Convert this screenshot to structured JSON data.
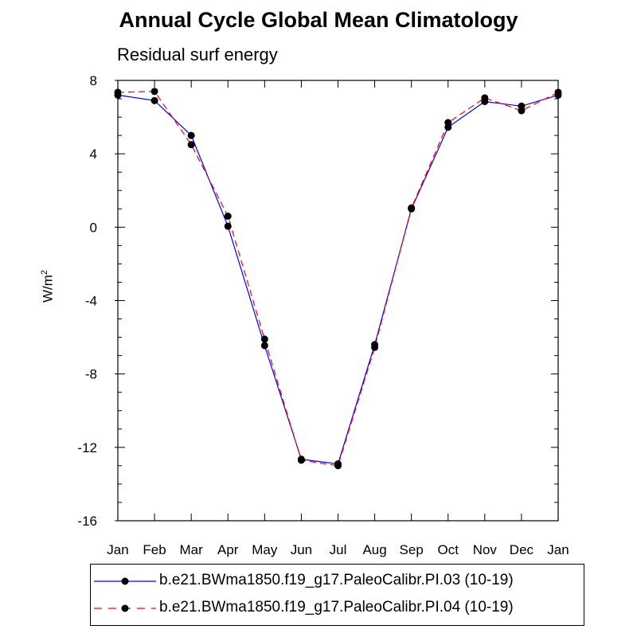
{
  "title": "Annual Cycle Global Mean Climatology",
  "subtitle": "Residual surf energy",
  "chart_data": {
    "type": "line",
    "title": "Annual Cycle Global Mean Climatology",
    "subtitle": "Residual surf energy",
    "xlabel": "",
    "ylabel": "W/m",
    "ylabel_superscript": "2",
    "categories": [
      "Jan",
      "Feb",
      "Mar",
      "Apr",
      "May",
      "Jun",
      "Jul",
      "Aug",
      "Sep",
      "Oct",
      "Nov",
      "Dec",
      "Jan"
    ],
    "ylim": [
      -16,
      8
    ],
    "yticks": [
      8,
      4,
      0,
      -4,
      -8,
      -12,
      -16
    ],
    "ytick_labels": [
      "8",
      "4",
      "0",
      "-4",
      "-8",
      "-12",
      "-16"
    ],
    "grid": false,
    "legend_placement": "bottom",
    "series": [
      {
        "name": "b.e21.BWma1850.f19_g17.PaleoCalibr.PI.03 (10-19)",
        "color": "#0000ff",
        "style": "solid",
        "values": [
          7.2,
          6.9,
          5.0,
          0.05,
          -6.45,
          -12.65,
          -12.9,
          -6.4,
          1.0,
          5.45,
          6.85,
          6.6,
          7.2
        ]
      },
      {
        "name": "b.e21.BWma1850.f19_g17.PaleoCalibr.PI.04 (10-19)",
        "color": "#ff0000",
        "style": "dashed",
        "values": [
          7.35,
          7.4,
          4.5,
          0.6,
          -6.1,
          -12.7,
          -13.0,
          -6.55,
          1.05,
          5.7,
          7.05,
          6.35,
          7.35
        ]
      }
    ]
  }
}
